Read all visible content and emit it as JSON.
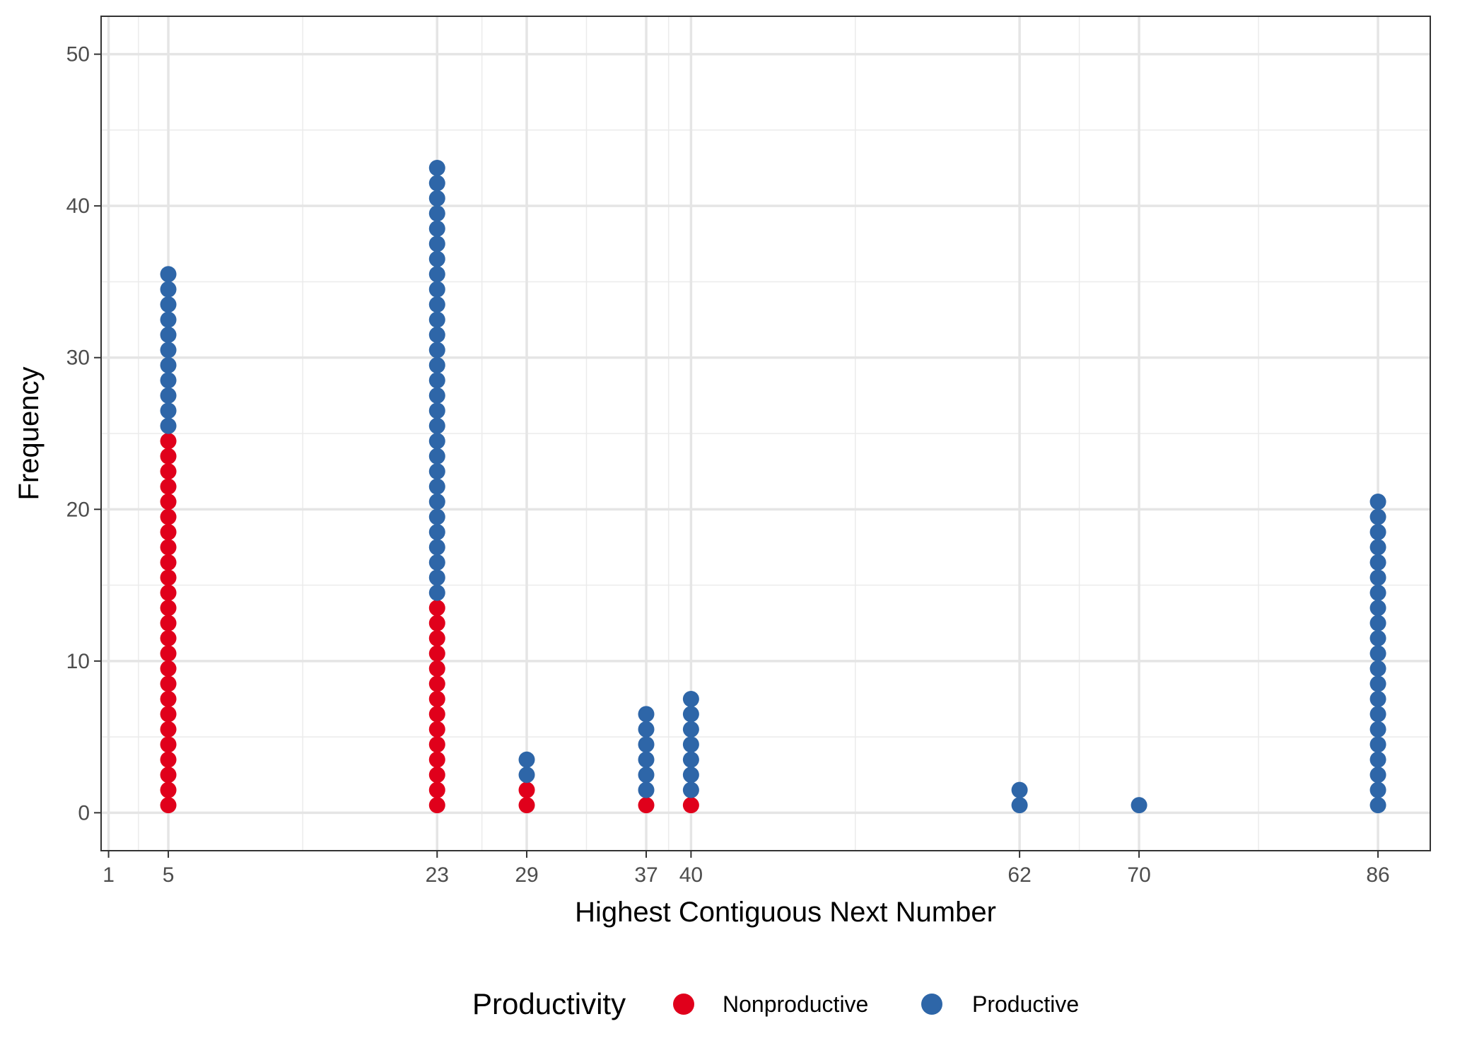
{
  "chart_data": {
    "type": "scatter",
    "subtype": "dot-plot",
    "xlabel": "Highest Contiguous Next Number",
    "ylabel": "Frequency",
    "x_ticks": [
      1,
      5,
      23,
      29,
      37,
      40,
      62,
      70,
      86
    ],
    "x_minor_gridlines": [
      3,
      14,
      26,
      33,
      38.5,
      51,
      66,
      78
    ],
    "xlim": [
      0.5,
      89.5
    ],
    "y_ticks": [
      0,
      10,
      20,
      30,
      40,
      50
    ],
    "ylim": [
      -2.5,
      52.5
    ],
    "grid": true,
    "legend": {
      "title": "Productivity",
      "position": "bottom",
      "entries": [
        {
          "label": "Nonproductive",
          "color": "#e0001b"
        },
        {
          "label": "Productive",
          "color": "#2e66a8"
        }
      ]
    },
    "series": [
      {
        "name": "Nonproductive",
        "color": "#e0001b",
        "counts": [
          {
            "x": 5,
            "count": 25
          },
          {
            "x": 23,
            "count": 14
          },
          {
            "x": 29,
            "count": 2
          },
          {
            "x": 37,
            "count": 1
          },
          {
            "x": 40,
            "count": 1
          }
        ]
      },
      {
        "name": "Productive",
        "color": "#2e66a8",
        "counts": [
          {
            "x": 5,
            "count": 11
          },
          {
            "x": 23,
            "count": 29
          },
          {
            "x": 29,
            "count": 2
          },
          {
            "x": 37,
            "count": 6
          },
          {
            "x": 40,
            "count": 7
          },
          {
            "x": 62,
            "count": 2
          },
          {
            "x": 70,
            "count": 1
          },
          {
            "x": 86,
            "count": 21
          }
        ]
      }
    ]
  }
}
